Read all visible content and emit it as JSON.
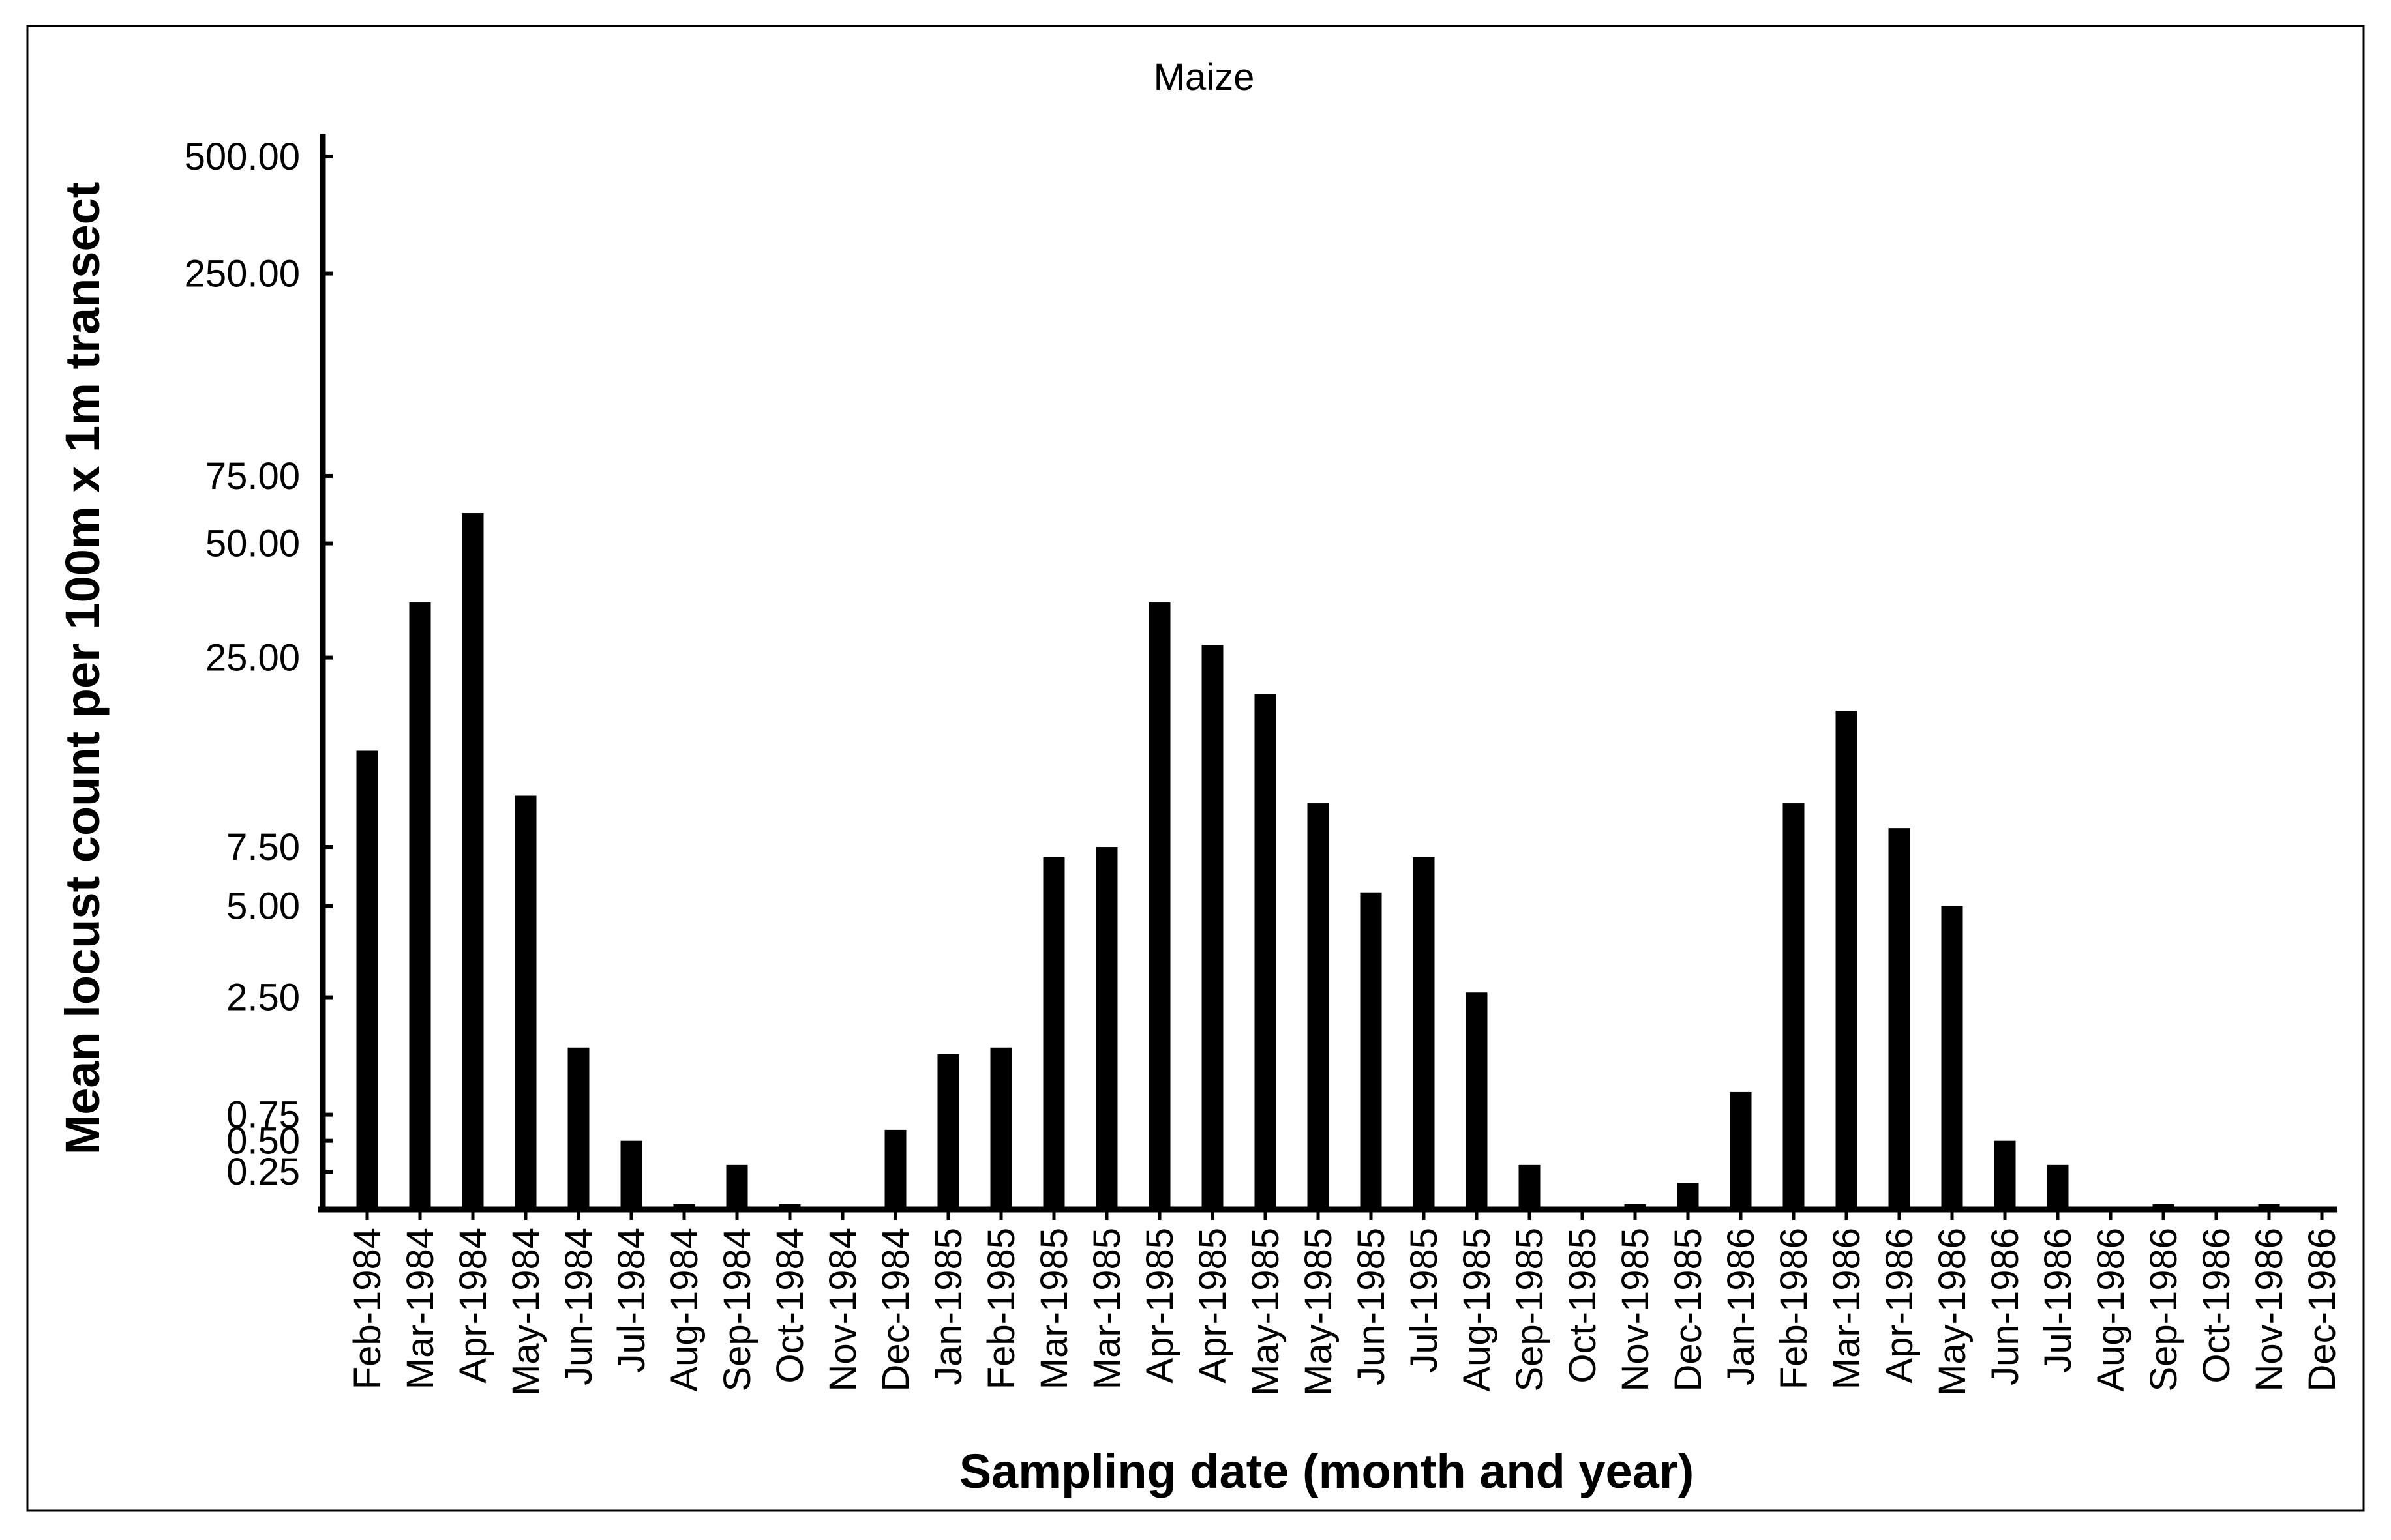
{
  "chart_data": {
    "type": "bar",
    "title": "Maize",
    "xlabel": "Sampling date (month and year)",
    "ylabel": "Mean locust count per 100m x 1m transect",
    "y_scale": "log(x+1)",
    "ylim": [
      0,
      500
    ],
    "grid": false,
    "legend": "none",
    "y_ticks": [
      {
        "value": 0.25,
        "label": "0.25"
      },
      {
        "value": 0.5,
        "label": "0.50"
      },
      {
        "value": 0.75,
        "label": "0.75"
      },
      {
        "value": 2.5,
        "label": "2.50"
      },
      {
        "value": 5,
        "label": "5.00"
      },
      {
        "value": 7.5,
        "label": "7.50"
      },
      {
        "value": 25,
        "label": "25.00"
      },
      {
        "value": 50,
        "label": "50.00"
      },
      {
        "value": 75,
        "label": "75.00"
      },
      {
        "value": 250,
        "label": "250.00"
      },
      {
        "value": 500,
        "label": "500.00"
      }
    ],
    "categories": [
      "Feb-1984",
      "Mar-1984",
      "Apr-1984",
      "May-1984",
      "Jun-1984",
      "Jul-1984",
      "Aug-1984",
      "Sep-1984",
      "Oct-1984",
      "Nov-1984",
      "Dec-1984",
      "Jan-1985",
      "Feb-1985",
      "Mar-1985",
      "Mar-1985",
      "Apr-1985",
      "Apr-1985",
      "May-1985",
      "May-1985",
      "Jun-1985",
      "Jul-1985",
      "Aug-1985",
      "Sep-1985",
      "Oct-1985",
      "Nov-1985",
      "Dec-1985",
      "Jan-1986",
      "Feb-1986",
      "Mar-1986",
      "Apr-1986",
      "May-1986",
      "Jun-1986",
      "Jul-1986",
      "Aug-1986",
      "Sep-1986",
      "Oct-1986",
      "Nov-1986",
      "Dec-1986"
    ],
    "values": [
      14,
      35,
      60,
      10.5,
      1.6,
      0.5,
      0.01,
      0.3,
      0.01,
      0,
      0.6,
      1.5,
      1.6,
      7,
      7.5,
      35,
      27,
      20,
      10,
      5.5,
      7,
      2.6,
      0.3,
      0,
      0.01,
      0.17,
      1.0,
      10,
      18,
      8.5,
      5,
      0.5,
      0.3,
      0,
      0.01,
      0,
      0.01,
      0
    ],
    "bar_color": "#000000"
  }
}
